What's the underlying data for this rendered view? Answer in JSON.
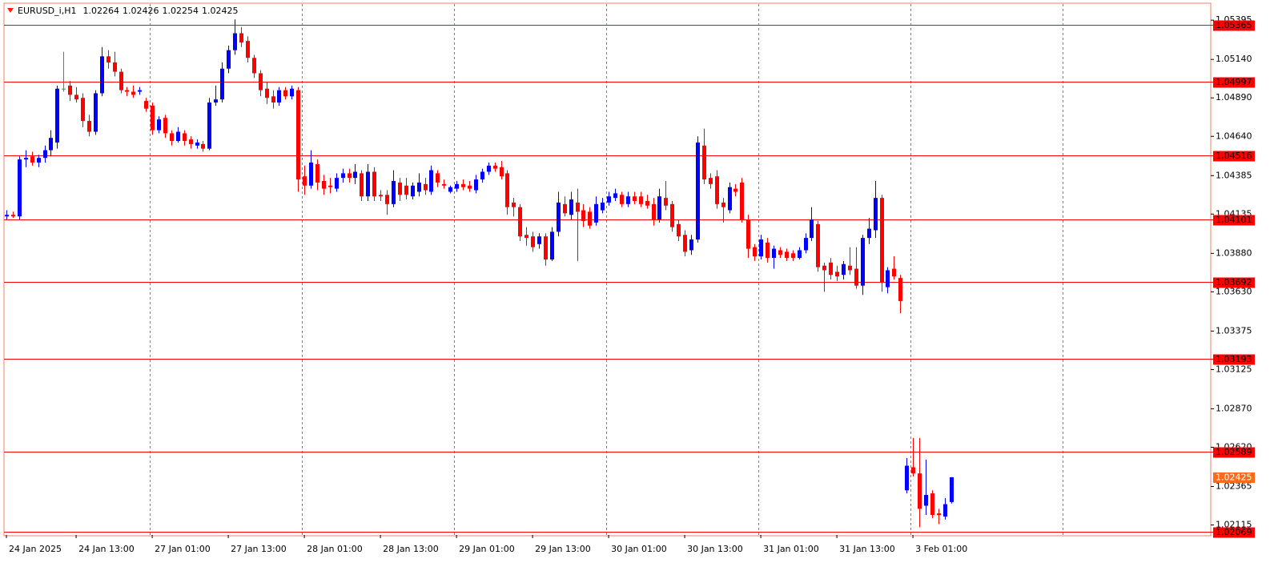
{
  "chart_data": {
    "type": "candlestick",
    "title": "EURUSD_i,H1",
    "up_color": "#0000ff",
    "down_color": "#ff0000",
    "doji_color": "#00c000",
    "level_color": "#ff0000",
    "price_label_color": "#ff6a1a",
    "ylim": [
      1.0205,
      1.055
    ],
    "yticks": [
      1.05395,
      {
        "value": 1.0514,
        "label": "1.05140"
      },
      {
        "value": 1.0489,
        "label": "1.04890"
      },
      {
        "value": 1.0464,
        "label": "1.04640"
      },
      1.04385,
      1.04135,
      {
        "value": 1.0388,
        "label": "1.03880"
      },
      {
        "value": 1.0363,
        "label": "1.03630"
      },
      1.03375,
      1.03125,
      {
        "value": 1.0287,
        "label": "1.02870"
      },
      {
        "value": 1.0262,
        "label": "1.02620"
      },
      1.02365,
      1.02115
    ],
    "levels": [
      1.05365,
      1.04997,
      1.04516,
      1.04101,
      1.03692,
      1.03193,
      1.02589,
      1.02069
    ],
    "categories": [
      "24 Jan 2025",
      null,
      null,
      null,
      null,
      null,
      null,
      null,
      null,
      null,
      null,
      "24 Jan 13:00",
      null,
      null,
      null,
      null,
      null,
      null,
      null,
      null,
      null,
      null,
      null,
      "27 Jan 01:00",
      null,
      null,
      null,
      null,
      null,
      null,
      null,
      null,
      null,
      null,
      null,
      "27 Jan 13:00",
      null,
      null,
      null,
      null,
      null,
      null,
      null,
      null,
      null,
      null,
      null,
      "28 Jan 01:00",
      null,
      null,
      null,
      null,
      null,
      null,
      null,
      null,
      null,
      null,
      null,
      "28 Jan 13:00",
      null,
      null,
      null,
      null,
      null,
      null,
      null,
      null,
      null,
      null,
      null,
      "29 Jan 01:00",
      null,
      null,
      null,
      null,
      null,
      null,
      null,
      null,
      null,
      null,
      null,
      "29 Jan 13:00",
      null,
      null,
      null,
      null,
      null,
      null,
      null,
      null,
      null,
      null,
      null,
      "30 Jan 01:00",
      null,
      null,
      null,
      null,
      null,
      null,
      null,
      null,
      null,
      null,
      null,
      "30 Jan 13:00",
      null,
      null,
      null,
      null,
      null,
      null,
      null,
      null,
      null,
      null,
      null,
      "31 Jan 01:00",
      null,
      null,
      null,
      null,
      null,
      null,
      null,
      null,
      null,
      null,
      null,
      "31 Jan 13:00",
      null,
      null,
      null,
      null,
      null,
      null,
      null,
      null,
      null,
      null,
      null,
      "3 Feb 01:00",
      null,
      null,
      null,
      null,
      null,
      null
    ],
    "ohlc": [
      [
        1.0412,
        1.0416,
        1.041,
        1.0413
      ],
      [
        1.0413,
        1.0415,
        1.0411,
        1.0412
      ],
      [
        1.0412,
        1.0451,
        1.041,
        1.0449
      ],
      [
        1.0449,
        1.0455,
        1.0444,
        1.045
      ],
      [
        1.0451,
        1.0454,
        1.0445,
        1.0447
      ],
      [
        1.0447,
        1.0452,
        1.0444,
        1.045
      ],
      [
        1.045,
        1.0458,
        1.0447,
        1.0455
      ],
      [
        1.0455,
        1.0468,
        1.0451,
        1.0463
      ],
      [
        1.046,
        1.0497,
        1.0456,
        1.0495
      ],
      [
        1.0495,
        1.0519,
        1.0493,
        1.0495
      ],
      [
        1.0497,
        1.05,
        1.0487,
        1.0491
      ],
      [
        1.0491,
        1.0496,
        1.0486,
        1.0488
      ],
      [
        1.0489,
        1.0492,
        1.047,
        1.0474
      ],
      [
        1.0474,
        1.0478,
        1.0464,
        1.0467
      ],
      [
        1.0467,
        1.0494,
        1.0465,
        1.0492
      ],
      [
        1.0492,
        1.0522,
        1.049,
        1.0516
      ],
      [
        1.0516,
        1.052,
        1.0508,
        1.0512
      ],
      [
        1.0512,
        1.0519,
        1.0503,
        1.0506
      ],
      [
        1.0506,
        1.0508,
        1.0492,
        1.0494
      ],
      [
        1.0494,
        1.0496,
        1.049,
        1.0493
      ],
      [
        1.0493,
        1.0497,
        1.0489,
        1.0491
      ],
      [
        1.0493,
        1.0496,
        1.0491,
        1.0494
      ],
      [
        1.0487,
        1.0489,
        1.048,
        1.0482
      ],
      [
        1.0484,
        1.0486,
        1.0465,
        1.0468
      ],
      [
        1.0468,
        1.0477,
        1.0466,
        1.0475
      ],
      [
        1.0476,
        1.0478,
        1.0463,
        1.0466
      ],
      [
        1.0466,
        1.0468,
        1.0458,
        1.0461
      ],
      [
        1.0461,
        1.047,
        1.046,
        1.0467
      ],
      [
        1.0466,
        1.0468,
        1.0458,
        1.0461
      ],
      [
        1.0462,
        1.0464,
        1.0456,
        1.0459
      ],
      [
        1.0458,
        1.0462,
        1.0456,
        1.046
      ],
      [
        1.0459,
        1.0461,
        1.0454,
        1.0456
      ],
      [
        1.0456,
        1.0489,
        1.0455,
        1.0486
      ],
      [
        1.0486,
        1.0497,
        1.0484,
        1.0488
      ],
      [
        1.0488,
        1.0512,
        1.0486,
        1.0508
      ],
      [
        1.0508,
        1.0523,
        1.0505,
        1.052
      ],
      [
        1.052,
        1.054,
        1.0517,
        1.0531
      ],
      [
        1.0531,
        1.0535,
        1.0522,
        1.0525
      ],
      [
        1.0526,
        1.0529,
        1.0512,
        1.0515
      ],
      [
        1.0515,
        1.0517,
        1.0502,
        1.0505
      ],
      [
        1.0505,
        1.0507,
        1.049,
        1.0494
      ],
      [
        1.0495,
        1.0499,
        1.0485,
        1.0489
      ],
      [
        1.049,
        1.0494,
        1.0482,
        1.0486
      ],
      [
        1.0486,
        1.0496,
        1.0484,
        1.0494
      ],
      [
        1.0494,
        1.0496,
        1.0488,
        1.049
      ],
      [
        1.049,
        1.0497,
        1.0488,
        1.0495
      ],
      [
        1.0494,
        1.0496,
        1.0428,
        1.0436
      ],
      [
        1.0438,
        1.0445,
        1.0426,
        1.0432
      ],
      [
        1.0432,
        1.0455,
        1.043,
        1.0447
      ],
      [
        1.0446,
        1.0449,
        1.0429,
        1.0434
      ],
      [
        1.0435,
        1.0439,
        1.0426,
        1.043
      ],
      [
        1.0432,
        1.0437,
        1.0427,
        1.0431
      ],
      [
        1.043,
        1.044,
        1.0428,
        1.0437
      ],
      [
        1.0437,
        1.0443,
        1.0434,
        1.044
      ],
      [
        1.044,
        1.0443,
        1.0434,
        1.0437
      ],
      [
        1.0437,
        1.0446,
        1.0433,
        1.0441
      ],
      [
        1.044,
        1.0442,
        1.0422,
        1.0425
      ],
      [
        1.0425,
        1.0446,
        1.0422,
        1.0441
      ],
      [
        1.0441,
        1.0444,
        1.0422,
        1.0425
      ],
      [
        1.0426,
        1.0429,
        1.0422,
        1.0425
      ],
      [
        1.0426,
        1.0429,
        1.0413,
        1.042
      ],
      [
        1.042,
        1.0442,
        1.0418,
        1.0435
      ],
      [
        1.0434,
        1.0437,
        1.0422,
        1.0426
      ],
      [
        1.0432,
        1.0437,
        1.0423,
        1.0426
      ],
      [
        1.0425,
        1.0434,
        1.0423,
        1.0432
      ],
      [
        1.0428,
        1.044,
        1.0425,
        1.0434
      ],
      [
        1.0433,
        1.0437,
        1.0426,
        1.0429
      ],
      [
        1.0428,
        1.0445,
        1.0426,
        1.0442
      ],
      [
        1.044,
        1.0442,
        1.0431,
        1.0434
      ],
      [
        1.0433,
        1.0436,
        1.043,
        1.0432
      ],
      [
        1.0428,
        1.0432,
        1.0427,
        1.0431
      ],
      [
        1.043,
        1.0435,
        1.0428,
        1.0433
      ],
      [
        1.0433,
        1.0436,
        1.0429,
        1.0431
      ],
      [
        1.0432,
        1.0435,
        1.0428,
        1.043
      ],
      [
        1.0429,
        1.0439,
        1.0427,
        1.0436
      ],
      [
        1.0436,
        1.0443,
        1.0434,
        1.0441
      ],
      [
        1.0441,
        1.0447,
        1.0439,
        1.0445
      ],
      [
        1.0445,
        1.0447,
        1.0441,
        1.0443
      ],
      [
        1.0444,
        1.0448,
        1.0436,
        1.0438
      ],
      [
        1.044,
        1.0442,
        1.0413,
        1.0418
      ],
      [
        1.0421,
        1.0424,
        1.0412,
        1.0418
      ],
      [
        1.0418,
        1.042,
        1.0396,
        1.0399
      ],
      [
        1.04,
        1.0405,
        1.0393,
        1.0398
      ],
      [
        1.0399,
        1.0402,
        1.0389,
        1.0392
      ],
      [
        1.0394,
        1.0401,
        1.0391,
        1.0399
      ],
      [
        1.0399,
        1.0401,
        1.038,
        1.0384
      ],
      [
        1.0384,
        1.0405,
        1.0383,
        1.0402
      ],
      [
        1.0402,
        1.0428,
        1.0399,
        1.0421
      ],
      [
        1.042,
        1.0425,
        1.0412,
        1.0414
      ],
      [
        1.0413,
        1.0428,
        1.041,
        1.0423
      ],
      [
        1.0421,
        1.043,
        1.0383,
        1.0415
      ],
      [
        1.0416,
        1.042,
        1.0405,
        1.0409
      ],
      [
        1.0415,
        1.0418,
        1.0404,
        1.0406
      ],
      [
        1.0408,
        1.0425,
        1.0406,
        1.042
      ],
      [
        1.0416,
        1.0424,
        1.0414,
        1.0421
      ],
      [
        1.0421,
        1.0428,
        1.0419,
        1.0425
      ],
      [
        1.0424,
        1.043,
        1.0422,
        1.0427
      ],
      [
        1.0426,
        1.0428,
        1.0418,
        1.042
      ],
      [
        1.042,
        1.0428,
        1.0418,
        1.0425
      ],
      [
        1.0425,
        1.0428,
        1.042,
        1.0422
      ],
      [
        1.0425,
        1.0428,
        1.0418,
        1.042
      ],
      [
        1.0422,
        1.0426,
        1.0417,
        1.0419
      ],
      [
        1.042,
        1.0424,
        1.0406,
        1.041
      ],
      [
        1.041,
        1.043,
        1.0408,
        1.0425
      ],
      [
        1.0424,
        1.0435,
        1.0416,
        1.0419
      ],
      [
        1.042,
        1.0422,
        1.0402,
        1.0405
      ],
      [
        1.0407,
        1.041,
        1.0396,
        1.0399
      ],
      [
        1.04,
        1.0403,
        1.0386,
        1.0389
      ],
      [
        1.039,
        1.04,
        1.0387,
        1.0397
      ],
      [
        1.0397,
        1.0464,
        1.0395,
        1.046
      ],
      [
        1.0458,
        1.0469,
        1.0433,
        1.0436
      ],
      [
        1.0437,
        1.044,
        1.043,
        1.0433
      ],
      [
        1.0438,
        1.0442,
        1.0417,
        1.042
      ],
      [
        1.0421,
        1.0424,
        1.0408,
        1.0418
      ],
      [
        1.0416,
        1.0434,
        1.0414,
        1.0431
      ],
      [
        1.043,
        1.0433,
        1.0425,
        1.0428
      ],
      [
        1.0434,
        1.0437,
        1.0408,
        1.041
      ],
      [
        1.041,
        1.0413,
        1.0385,
        1.0391
      ],
      [
        1.0392,
        1.0394,
        1.0383,
        1.0386
      ],
      [
        1.0386,
        1.04,
        1.0384,
        1.0397
      ],
      [
        1.0395,
        1.0398,
        1.0382,
        1.0385
      ],
      [
        1.0385,
        1.0393,
        1.0378,
        1.0391
      ],
      [
        1.039,
        1.0392,
        1.0385,
        1.0387
      ],
      [
        1.0389,
        1.0391,
        1.0383,
        1.0385
      ],
      [
        1.0388,
        1.039,
        1.0383,
        1.0385
      ],
      [
        1.0385,
        1.0392,
        1.0384,
        1.039
      ],
      [
        1.039,
        1.0401,
        1.0388,
        1.0398
      ],
      [
        1.0398,
        1.0418,
        1.0396,
        1.041
      ],
      [
        1.0407,
        1.0409,
        1.0376,
        1.0379
      ],
      [
        1.038,
        1.0382,
        1.0363,
        1.0377
      ],
      [
        1.0382,
        1.0385,
        1.0371,
        1.0374
      ],
      [
        1.0376,
        1.038,
        1.037,
        1.0373
      ],
      [
        1.0374,
        1.0383,
        1.0371,
        1.0381
      ],
      [
        1.038,
        1.0392,
        1.0374,
        1.0377
      ],
      [
        1.0378,
        1.0392,
        1.0365,
        1.0367
      ],
      [
        1.0367,
        1.04,
        1.0361,
        1.0398
      ],
      [
        1.0398,
        1.0411,
        1.0394,
        1.0404
      ],
      [
        1.0403,
        1.0435,
        1.0398,
        1.0424
      ],
      [
        1.0424,
        1.0426,
        1.0363,
        1.0369
      ],
      [
        1.0366,
        1.0379,
        1.0362,
        1.0377
      ],
      [
        1.0378,
        1.0386,
        1.0371,
        1.0373
      ],
      [
        1.0372,
        1.0374,
        1.0349,
        1.0357
      ],
      [
        1.0234,
        1.0255,
        1.0232,
        1.025
      ],
      [
        1.0249,
        1.0268,
        1.0243,
        1.0245
      ],
      [
        1.0245,
        1.0268,
        1.021,
        1.0222
      ],
      [
        1.0224,
        1.0254,
        1.0218,
        1.0231
      ],
      [
        1.0232,
        1.0234,
        1.0216,
        1.0218
      ],
      [
        1.0219,
        1.0222,
        1.0212,
        1.0218
      ],
      [
        1.0217,
        1.0229,
        1.0215,
        1.0225
      ],
      [
        1.02264,
        1.02426,
        1.02254,
        1.02425
      ]
    ]
  }
}
